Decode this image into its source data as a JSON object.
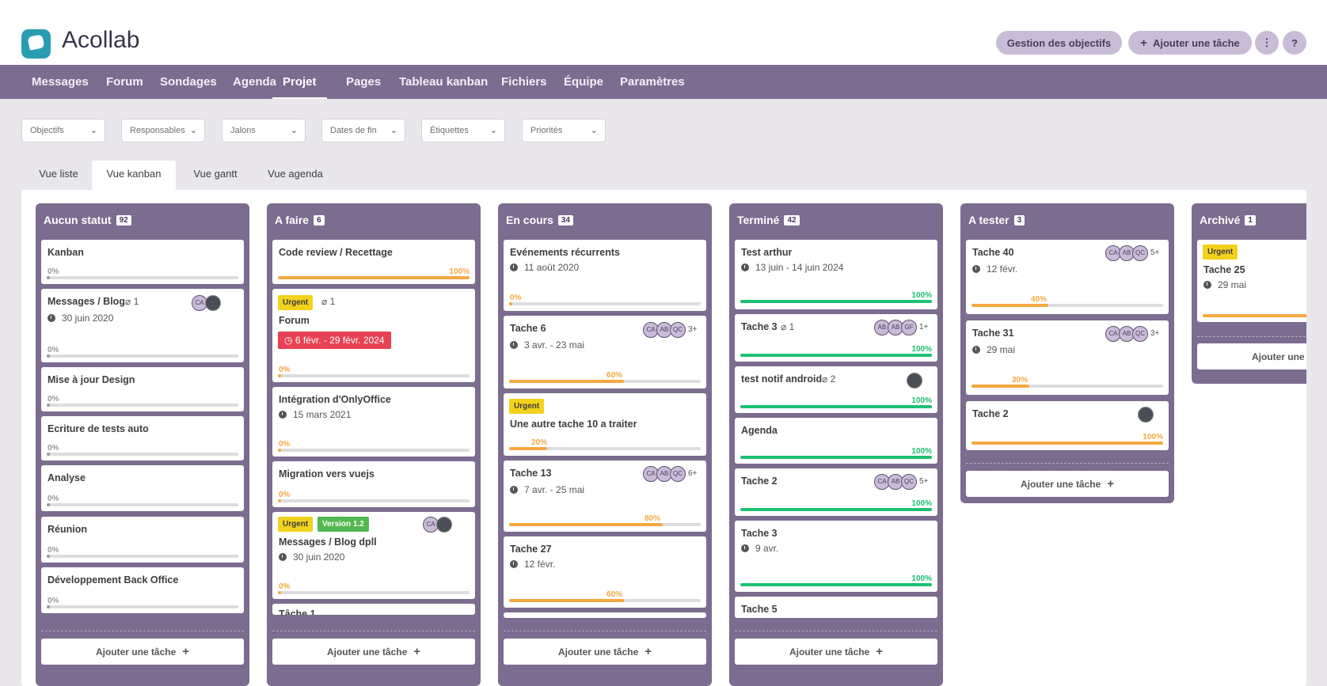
{
  "app": {
    "name": "Acollab"
  },
  "header": {
    "goals_button": "Gestion des objectifs",
    "add_task_button": "Ajouter une tâche",
    "add_icon": "+",
    "more_icon": "⋮",
    "help_icon": "?"
  },
  "nav": [
    "Messages",
    "Forum",
    "Sondages",
    "Agenda",
    "Projet",
    "Pages",
    "Tableau kanban",
    "Fichiers",
    "Équipe",
    "Paramètres"
  ],
  "filters": [
    "Objectifs",
    "Responsables",
    "Jalons",
    "Dates de fin",
    "Étiquettes",
    "Priorités"
  ],
  "view_tabs": [
    "Vue liste",
    "Vue kanban",
    "Vue gantt",
    "Vue agenda"
  ],
  "add_task_label": "Ajouter une tâche",
  "colors": {
    "accent": "#7c6c8f",
    "orange": "#f5a841",
    "green": "#1ec073",
    "urgent": "#f2d21c",
    "version": "#53b84f",
    "date_badge": "#e84255"
  },
  "columns": [
    {
      "title": "Aucun statut",
      "count": "92",
      "cards": [
        {
          "title": "Kanban",
          "pct": "0%",
          "progress": 0
        },
        {
          "title": "Messages / Blog",
          "attach": "1",
          "avatars": [
            "CA",
            "photo"
          ],
          "date": "30 juin 2020",
          "pct": "0%",
          "progress": 0
        },
        {
          "title": "Mise à jour Design",
          "pct": "0%",
          "progress": 0
        },
        {
          "title": "Ecriture de tests auto",
          "pct": "0%",
          "progress": 0
        },
        {
          "title": "Analyse",
          "pct": "0%",
          "progress": 0
        },
        {
          "title": "Réunion",
          "pct": "0%",
          "progress": 0
        },
        {
          "title": "Développement Back Office",
          "pct": "0%",
          "progress": 0
        }
      ]
    },
    {
      "title": "A faire",
      "count": "6",
      "cards": [
        {
          "title": "Code review / Recettage",
          "pct": "100%",
          "progress": 100
        },
        {
          "urgent": "Urgent",
          "attach": "1",
          "title": "Forum",
          "date_badge": "6 févr. - 29 févr. 2024",
          "pct": "0%",
          "progress": 0
        },
        {
          "title": "Intégration d'OnlyOffice",
          "date": "15 mars 2021",
          "pct": "0%",
          "progress": 0
        },
        {
          "title": "Migration vers vuejs",
          "pct": "0%",
          "progress": 0
        },
        {
          "urgent": "Urgent",
          "version": "Version 1.2",
          "avatars": [
            "CA",
            "photo"
          ],
          "title": "Messages / Blog dpll",
          "date": "30 juin 2020",
          "pct": "0%",
          "progress": 0
        },
        {
          "title": "Tâche 1"
        }
      ]
    },
    {
      "title": "En cours",
      "count": "34",
      "cards": [
        {
          "title": "Evénements récurrents",
          "date": "11 août 2020",
          "pct": "0%",
          "progress": 0
        },
        {
          "title": "Tache 6",
          "avatars": [
            "CA",
            "AB",
            "QC"
          ],
          "more": "3+",
          "date": "3 avr. - 23 mai",
          "pct": "60%",
          "progress": 60
        },
        {
          "urgent": "Urgent",
          "title": "Une autre tache 10 a traiter",
          "pct": "20%",
          "progress": 20
        },
        {
          "title": "Tache 13",
          "avatars": [
            "CA",
            "AB",
            "QC"
          ],
          "more": "6+",
          "date": "7 avr. - 25 mai",
          "pct": "80%",
          "progress": 80
        },
        {
          "title": "Tache 27",
          "date": "12 févr.",
          "pct": "60%",
          "progress": 60
        }
      ]
    },
    {
      "title": "Terminé",
      "count": "42",
      "cards": [
        {
          "title": "Test arthur",
          "date": "13 juin - 14 juin 2024",
          "pct": "100%",
          "progress": 100
        },
        {
          "title": "Tache 3",
          "attach": "1",
          "avatars": [
            "AB",
            "AB",
            "GF"
          ],
          "more": "1+",
          "pct": "100%",
          "progress": 100
        },
        {
          "title": "test notif android",
          "attach": "2",
          "avatars": [
            "photo"
          ],
          "pct": "100%",
          "progress": 100
        },
        {
          "title": "Agenda",
          "pct": "100%",
          "progress": 100
        },
        {
          "title": "Tache 2",
          "avatars": [
            "CA",
            "AB",
            "QC"
          ],
          "more": "5+",
          "pct": "100%",
          "progress": 100
        },
        {
          "title": "Tache 3",
          "date": "9 avr.",
          "pct": "100%",
          "progress": 100
        },
        {
          "title": "Tache 5"
        }
      ]
    },
    {
      "title": "A tester",
      "count": "3",
      "cards": [
        {
          "title": "Tache 40",
          "avatars": [
            "CA",
            "AB",
            "QC"
          ],
          "more": "5+",
          "date": "12 févr.",
          "pct": "40%",
          "progress": 40
        },
        {
          "title": "Tache 31",
          "avatars": [
            "CA",
            "AB",
            "QC"
          ],
          "more": "3+",
          "date": "29 mai",
          "pct": "30%",
          "progress": 30
        },
        {
          "title": "Tache 2",
          "avatars": [
            "photo"
          ],
          "pct": "100%",
          "progress": 100
        }
      ]
    },
    {
      "title": "Archivé",
      "count": "1",
      "cards": [
        {
          "urgent": "Urgent",
          "title": "Tache 25",
          "date": "29 mai"
        }
      ]
    }
  ]
}
